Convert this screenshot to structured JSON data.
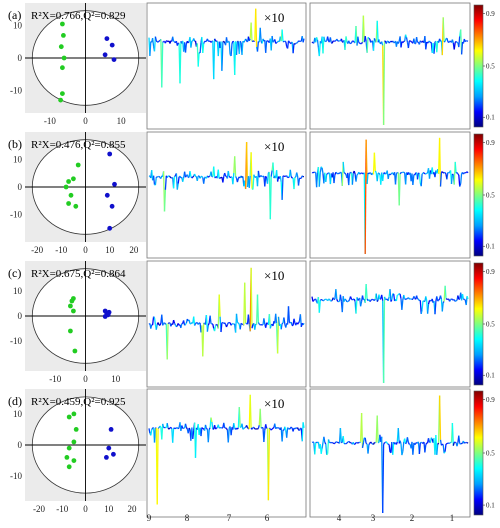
{
  "figure": {
    "x_ticks_left_spectrum": [
      "9",
      "8",
      "7",
      "6"
    ],
    "x_ticks_right_spectrum": [
      "4",
      "3",
      "2",
      "1"
    ],
    "zoom_label": "×10",
    "colorbar_ticks": [
      "0.9",
      "0.5",
      "0.1"
    ],
    "colorbar_colors": [
      "#00007f",
      "#0000ff",
      "#00a0ff",
      "#00ffff",
      "#7fff7f",
      "#ffff00",
      "#ff8000",
      "#ff0000",
      "#7f0000"
    ]
  },
  "chart_data": [
    {
      "panel": "(a)",
      "type": "scatter",
      "title": "R²X=0.766,Q²=0.829",
      "x_ticks": [
        "-10",
        "0",
        "10"
      ],
      "y_ticks": [
        "10",
        "0",
        "-10"
      ],
      "xlim": [
        -17,
        17
      ],
      "ylim": [
        -17,
        17
      ],
      "series": [
        {
          "color": "#22cc22",
          "points": [
            [
              -6.5,
              10.5
            ],
            [
              -6.2,
              7
            ],
            [
              -6.8,
              3.5
            ],
            [
              -6,
              0
            ],
            [
              -6.5,
              -3
            ],
            [
              -6.5,
              -11
            ],
            [
              -7,
              -13
            ]
          ]
        },
        {
          "color": "#1010cc",
          "points": [
            [
              6,
              6
            ],
            [
              7.5,
              4
            ],
            [
              5.5,
              1
            ],
            [
              8,
              -0.5
            ]
          ]
        }
      ]
    },
    {
      "panel": "(b)",
      "type": "scatter",
      "title": "R²X=0.476,Q²=0.855",
      "x_ticks": [
        "-20",
        "-10",
        "0",
        "10",
        "20"
      ],
      "y_ticks": [
        "10",
        "0",
        "-10"
      ],
      "xlim": [
        -25,
        25
      ],
      "ylim": [
        -20,
        20
      ],
      "series": [
        {
          "color": "#22cc22",
          "points": [
            [
              -5,
              3
            ],
            [
              -7,
              2
            ],
            [
              -8,
              0
            ],
            [
              -6,
              -3
            ],
            [
              -7,
              -6
            ],
            [
              -4,
              -7
            ],
            [
              -3,
              8
            ]
          ]
        },
        {
          "color": "#1010cc",
          "points": [
            [
              10,
              12
            ],
            [
              12,
              1
            ],
            [
              9,
              -3
            ],
            [
              11,
              -7
            ],
            [
              10,
              -15
            ]
          ]
        }
      ]
    },
    {
      "panel": "(c)",
      "type": "scatter",
      "title": "R²X=0.675,Q²=0.864",
      "x_ticks": [
        "-10",
        "0",
        "10"
      ],
      "y_ticks": [
        "10",
        "0",
        "-10"
      ],
      "xlim": [
        -20,
        20
      ],
      "ylim": [
        -22,
        22
      ],
      "series": [
        {
          "color": "#22cc22",
          "points": [
            [
              -4,
              7
            ],
            [
              -4.5,
              6
            ],
            [
              -5,
              4
            ],
            [
              -4,
              2
            ],
            [
              -5,
              -6
            ],
            [
              -3.5,
              -14
            ]
          ]
        },
        {
          "color": "#1010cc",
          "points": [
            [
              6.5,
              2
            ],
            [
              7,
              1.2
            ],
            [
              7.5,
              0.5
            ],
            [
              6.5,
              -0.2
            ],
            [
              7.8,
              1.5
            ]
          ]
        }
      ]
    },
    {
      "panel": "(d)",
      "type": "scatter",
      "title": "R²X=0.459,Q²=0.925",
      "x_ticks": [
        "-20",
        "-10",
        "0",
        "10",
        "20"
      ],
      "y_ticks": [
        "10",
        "0",
        "-10"
      ],
      "xlim": [
        -26,
        26
      ],
      "ylim": [
        -18,
        18
      ],
      "series": [
        {
          "color": "#22cc22",
          "points": [
            [
              -5,
              10
            ],
            [
              -7,
              9
            ],
            [
              -4,
              5
            ],
            [
              -5,
              1
            ],
            [
              -7,
              -1
            ],
            [
              -8,
              -4
            ],
            [
              -5,
              -5
            ],
            [
              -7,
              -7
            ]
          ]
        },
        {
          "color": "#1010cc",
          "points": [
            [
              11,
              5
            ],
            [
              10,
              -1
            ],
            [
              12,
              -3
            ],
            [
              9,
              -4
            ]
          ]
        }
      ]
    }
  ]
}
